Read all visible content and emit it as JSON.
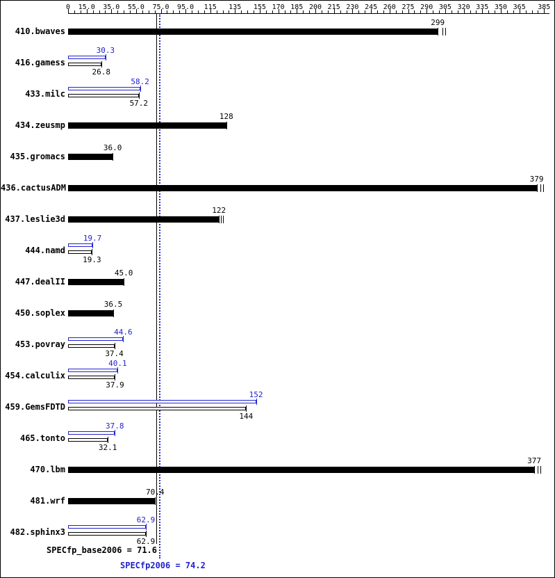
{
  "chart_data": {
    "type": "bar",
    "orientation": "horizontal",
    "title": "",
    "xlabel": "",
    "ylabel": "",
    "legend": "none",
    "unit_axis": {
      "position": "top",
      "min": 0,
      "max": 385,
      "minor_tick_step": 5,
      "ticks": [
        {
          "value": 0,
          "label": "0"
        },
        {
          "value": 15,
          "label": "15.0"
        },
        {
          "value": 35,
          "label": "35.0"
        },
        {
          "value": 55,
          "label": "55.0"
        },
        {
          "value": 75,
          "label": "75.0"
        },
        {
          "value": 95,
          "label": "95.0"
        },
        {
          "value": 115,
          "label": "115"
        },
        {
          "value": 135,
          "label": "135"
        },
        {
          "value": 155,
          "label": "155"
        },
        {
          "value": 170,
          "label": "170"
        },
        {
          "value": 185,
          "label": "185"
        },
        {
          "value": 200,
          "label": "200"
        },
        {
          "value": 215,
          "label": "215"
        },
        {
          "value": 230,
          "label": "230"
        },
        {
          "value": 245,
          "label": "245"
        },
        {
          "value": 260,
          "label": "260"
        },
        {
          "value": 275,
          "label": "275"
        },
        {
          "value": 290,
          "label": "290"
        },
        {
          "value": 305,
          "label": "305"
        },
        {
          "value": 320,
          "label": "320"
        },
        {
          "value": 335,
          "label": "335"
        },
        {
          "value": 350,
          "label": "350"
        },
        {
          "value": 365,
          "label": "365"
        },
        {
          "value": 385,
          "label": "385"
        }
      ]
    },
    "series_colors": {
      "base": "#000000",
      "peak": "#2222cc"
    },
    "benchmarks": [
      {
        "name": "410.bwaves",
        "base": 299,
        "base_label": "299",
        "peak": null,
        "peak_label": null,
        "run_marks": [
          303,
          305
        ]
      },
      {
        "name": "416.gamess",
        "base": 26.8,
        "base_label": "26.8",
        "peak": 30.3,
        "peak_label": "30.3"
      },
      {
        "name": "433.milc",
        "base": 57.2,
        "base_label": "57.2",
        "peak": 58.2,
        "peak_label": "58.2"
      },
      {
        "name": "434.zeusmp",
        "base": 128,
        "base_label": "128",
        "peak": null,
        "peak_label": null
      },
      {
        "name": "435.gromacs",
        "base": 36.0,
        "base_label": "36.0",
        "peak": null,
        "peak_label": null
      },
      {
        "name": "436.cactusADM",
        "base": 379,
        "base_label": "379",
        "peak": null,
        "peak_label": null,
        "run_marks": [
          382,
          384
        ]
      },
      {
        "name": "437.leslie3d",
        "base": 122,
        "base_label": "122",
        "peak": null,
        "peak_label": null,
        "run_marks": [
          123.5,
          125
        ]
      },
      {
        "name": "444.namd",
        "base": 19.3,
        "base_label": "19.3",
        "peak": 19.7,
        "peak_label": "19.7"
      },
      {
        "name": "447.dealII",
        "base": 45.0,
        "base_label": "45.0",
        "peak": null,
        "peak_label": null
      },
      {
        "name": "450.soplex",
        "base": 36.5,
        "base_label": "36.5",
        "peak": null,
        "peak_label": null
      },
      {
        "name": "453.povray",
        "base": 37.4,
        "base_label": "37.4",
        "peak": 44.6,
        "peak_label": "44.6"
      },
      {
        "name": "454.calculix",
        "base": 37.9,
        "base_label": "37.9",
        "peak": 40.1,
        "peak_label": "40.1"
      },
      {
        "name": "459.GemsFDTD",
        "base": 144,
        "base_label": "144",
        "peak": 152,
        "peak_label": "152"
      },
      {
        "name": "465.tonto",
        "base": 32.1,
        "base_label": "32.1",
        "peak": 37.8,
        "peak_label": "37.8"
      },
      {
        "name": "470.lbm",
        "base": 377,
        "base_label": "377",
        "peak": null,
        "peak_label": null,
        "run_marks": [
          380,
          382
        ]
      },
      {
        "name": "481.wrf",
        "base": 70.4,
        "base_label": "70.4",
        "peak": null,
        "peak_label": null
      },
      {
        "name": "482.sphinx3",
        "base": 62.9,
        "base_label": "62.9",
        "peak": 62.9,
        "peak_label": "62.9"
      }
    ],
    "reference_lines": [
      {
        "series": "base",
        "value": 71.6,
        "color": "#000000",
        "style": "solid"
      },
      {
        "series": "peak",
        "value": 74.2,
        "color": "#2222cc",
        "style": "dotted"
      }
    ],
    "summary": {
      "base_label": "SPECfp_base2006 = 71.6",
      "base_value": 71.6,
      "peak_label": "SPECfp2006 = 74.2",
      "peak_value": 74.2
    }
  }
}
